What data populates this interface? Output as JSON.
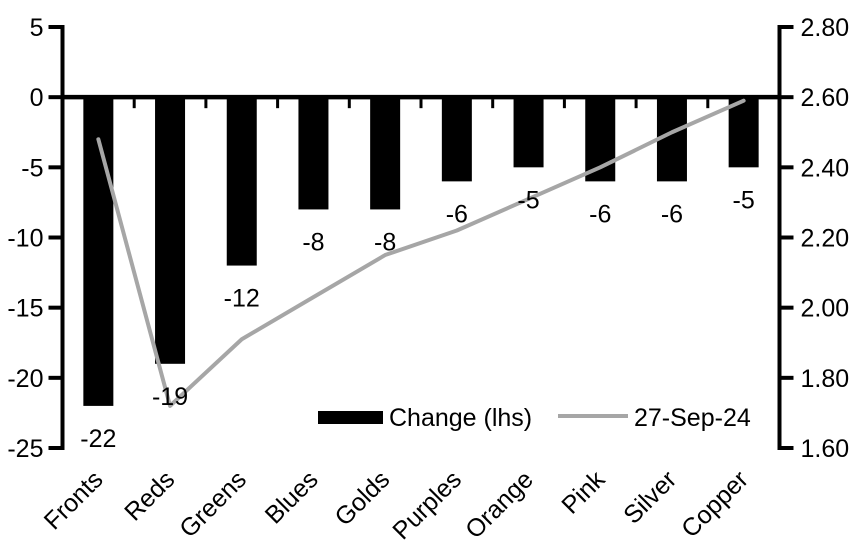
{
  "chart_data": {
    "type": "combo",
    "categories": [
      "Fronts",
      "Reds",
      "Greens",
      "Blues",
      "Golds",
      "Purples",
      "Orange",
      "Pink",
      "Silver",
      "Copper"
    ],
    "series": [
      {
        "name": "Change (lhs)",
        "chart_type": "bar",
        "axis": "left",
        "color": "#000000",
        "values": [
          -22,
          -19,
          -12,
          -8,
          -8,
          -6,
          -5,
          -6,
          -6,
          -5
        ],
        "data_labels": [
          "-22",
          "-19",
          "-12",
          "-8",
          "-8",
          "-6",
          "-5",
          "-6",
          "-6",
          "-5"
        ]
      },
      {
        "name": "27-Sep-24",
        "chart_type": "line",
        "axis": "right",
        "color": "#a6a6a6",
        "values": [
          2.48,
          1.72,
          1.91,
          2.03,
          2.15,
          2.22,
          2.31,
          2.4,
          2.5,
          2.59
        ]
      }
    ],
    "left_axis": {
      "min": -25,
      "max": 5,
      "tick_step": 5,
      "tick_labels": [
        "5",
        "0",
        "-5",
        "-10",
        "-15",
        "-20",
        "-25"
      ]
    },
    "right_axis": {
      "min": 1.6,
      "max": 2.8,
      "tick_step": 0.2,
      "tick_labels": [
        "2.80",
        "2.60",
        "2.40",
        "2.20",
        "2.00",
        "1.80",
        "1.60"
      ]
    },
    "legend": {
      "position": "bottom-inside",
      "entries": [
        "Change (lhs)",
        "27-Sep-24"
      ]
    },
    "grid": false,
    "background": "#ffffff",
    "axis_color": "#000000"
  }
}
